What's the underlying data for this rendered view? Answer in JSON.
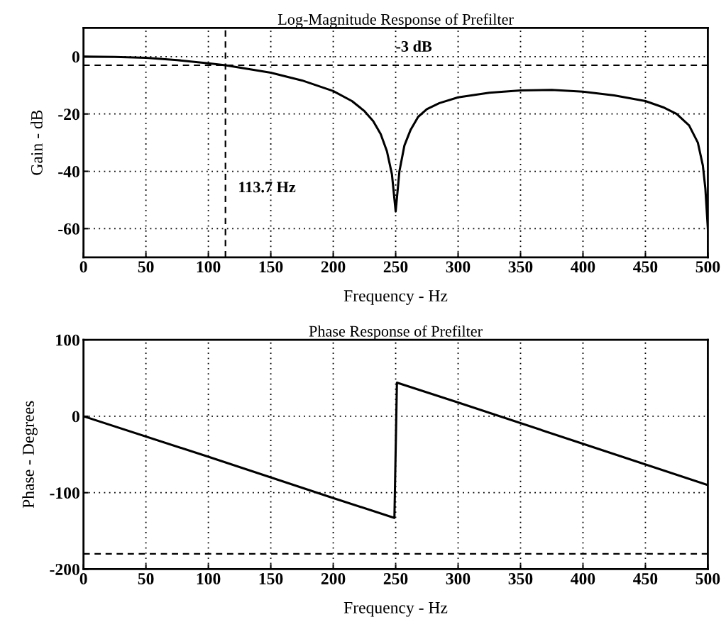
{
  "chart_data": [
    {
      "type": "line",
      "title": "Log-Magnitude Response of Prefilter",
      "xlabel": "Frequency - Hz",
      "ylabel": "Gain - dB",
      "series": [
        {
          "color": "#000000",
          "x": [
            0,
            25,
            50,
            75,
            100,
            113.7,
            150,
            175,
            200,
            215,
            225,
            232,
            238,
            243,
            247,
            250,
            253,
            257,
            262,
            268,
            275,
            285,
            300,
            325,
            350,
            375,
            400,
            425,
            450,
            465,
            475,
            485,
            492,
            496,
            498,
            500
          ],
          "values": [
            0,
            -0.1,
            -0.4,
            -1.2,
            -2.3,
            -3,
            -5.6,
            -8.3,
            -12,
            -15.5,
            -19,
            -22.5,
            -27,
            -33,
            -41,
            -54,
            -40,
            -31,
            -25.5,
            -21,
            -18.3,
            -16.2,
            -14.2,
            -12.6,
            -11.8,
            -11.6,
            -12.2,
            -13.5,
            -15.5,
            -17.8,
            -20,
            -24,
            -30,
            -38,
            -46,
            -60
          ]
        }
      ],
      "xlim": [
        0,
        500
      ],
      "xticks": [
        0,
        50,
        100,
        150,
        200,
        250,
        300,
        350,
        400,
        450,
        500
      ],
      "ylim": [
        -70,
        10
      ],
      "yticks": [
        -60,
        -40,
        -20,
        0
      ],
      "ref_lines": [
        {
          "axis": "y",
          "value": -3,
          "label": "-3 dB",
          "line_style": "dashed"
        },
        {
          "axis": "x",
          "value": 113.7,
          "label": "113.7 Hz",
          "line_style": "dashed"
        }
      ],
      "grid": true,
      "line_style": "solid"
    },
    {
      "type": "line",
      "title": "Phase Response of Prefilter",
      "xlabel": "Frequency - Hz",
      "ylabel": "Phase - Degrees",
      "series": [
        {
          "color": "#000000",
          "x": [
            0,
            100,
            200,
            249,
            251,
            300,
            400,
            500
          ],
          "values": [
            0,
            -53,
            -107,
            -133,
            44,
            18,
            -36,
            -90
          ]
        }
      ],
      "xlim": [
        0,
        500
      ],
      "xticks": [
        0,
        50,
        100,
        150,
        200,
        250,
        300,
        350,
        400,
        450,
        500
      ],
      "ylim": [
        -200,
        100
      ],
      "yticks": [
        -200,
        -100,
        0,
        100
      ],
      "ref_lines": [
        {
          "axis": "y",
          "value": -180,
          "line_style": "dashed"
        }
      ],
      "grid": true,
      "line_style": "solid"
    }
  ]
}
